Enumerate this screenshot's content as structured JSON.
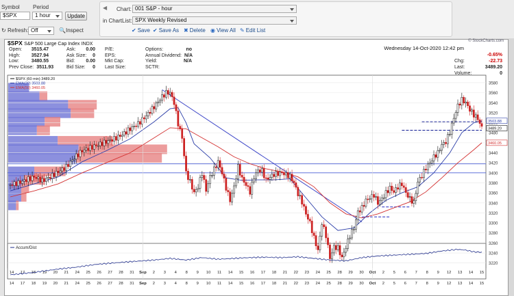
{
  "toolbar": {
    "symbol_label": "Symbol",
    "symbol_value": "$SPX",
    "period_label": "Period",
    "period_value": "1 hour",
    "update_label": "Update",
    "refresh_label": "Refresh:",
    "refresh_value": "Off",
    "inspect_label": "Inspect",
    "chart_label": "Chart:",
    "chart_value": "001 S&P - hour",
    "chartlist_label": "in ChartList:",
    "chartlist_value": "SPX Weekly Revised",
    "actions": [
      "Save",
      "Save As",
      "Delete",
      "View All",
      "Edit List"
    ]
  },
  "header": {
    "symbol": "$SPX",
    "name": "S&P 500 Large Cap Index",
    "exchange": "INDX",
    "brand": "© StockCharts.com",
    "date": "Wednesday  14-Oct-2020  12:42 pm",
    "quotes": {
      "col1": [
        [
          "Open:",
          "3515.47"
        ],
        [
          "High:",
          "3527.94"
        ],
        [
          "Low:",
          "3480.55"
        ],
        [
          "Prev Close:",
          "3511.93"
        ]
      ],
      "col2": [
        [
          "Ask:",
          "0.00"
        ],
        [
          "Ask Size:",
          "0"
        ],
        [
          "Bid:",
          "0.00"
        ],
        [
          "Bid Size:",
          "0"
        ]
      ],
      "col3": [
        [
          "P/E:",
          ""
        ],
        [
          "EPS:",
          ""
        ],
        [
          "Mkt Cap:",
          ""
        ],
        [
          "Last Size:",
          ""
        ]
      ],
      "col4": [
        [
          "Options:",
          "no"
        ],
        [
          "Annual Dividend:",
          "N/A"
        ],
        [
          "Yield:",
          "N/A"
        ],
        [
          "SCTR:",
          ""
        ]
      ],
      "right": [
        [
          "",
          "-0.65%"
        ],
        [
          "Chg:",
          "-22.73"
        ],
        [
          "Last:",
          "3489.20"
        ],
        [
          "Volume:",
          "0"
        ]
      ]
    }
  },
  "chart_data": {
    "type": "candlestick",
    "interval": "60 min",
    "legend": [
      "$SPX (60 min) 3489.20",
      "EMA(20) 3503.88",
      "EMA(50) 3460.05"
    ],
    "price_labels": [
      "3489.20",
      "3503.88",
      "3460.05"
    ],
    "y_ticks": [
      3220,
      3240,
      3260,
      3280,
      3300,
      3320,
      3340,
      3360,
      3380,
      3400,
      3420,
      3440,
      3460,
      3480,
      3500,
      3520,
      3540,
      3560,
      3580
    ],
    "ylim": [
      3210,
      3595
    ],
    "x_labels": [
      "14",
      "17",
      "18",
      "19",
      "20",
      "21",
      "24",
      "25",
      "26",
      "27",
      "28",
      "31",
      "Sep",
      "2",
      "3",
      "4",
      "8",
      "9",
      "10",
      "11",
      "14",
      "15",
      "16",
      "17",
      "18",
      "21",
      "22",
      "23",
      "24",
      "25",
      "28",
      "29",
      "30",
      "Oct",
      "2",
      "5",
      "6",
      "7",
      "8",
      "9",
      "12",
      "13",
      "14",
      "15"
    ],
    "bold_labels": [
      "Sep",
      "Oct"
    ],
    "close_points": [
      [
        0,
        3376
      ],
      [
        2,
        3380
      ],
      [
        4,
        3386
      ],
      [
        6,
        3392
      ],
      [
        8,
        3384
      ],
      [
        10,
        3392
      ],
      [
        12,
        3402
      ],
      [
        14,
        3412
      ],
      [
        16,
        3430
      ],
      [
        18,
        3444
      ],
      [
        20,
        3450
      ],
      [
        22,
        3456
      ],
      [
        24,
        3462
      ],
      [
        26,
        3468
      ],
      [
        28,
        3476
      ],
      [
        30,
        3488
      ],
      [
        32,
        3498
      ],
      [
        34,
        3514
      ],
      [
        36,
        3532
      ],
      [
        38,
        3552
      ],
      [
        39,
        3560
      ],
      [
        40,
        3560
      ],
      [
        41,
        3540
      ],
      [
        42,
        3498
      ],
      [
        43,
        3470
      ],
      [
        44,
        3400
      ],
      [
        45,
        3382
      ],
      [
        46,
        3360
      ],
      [
        47,
        3372
      ],
      [
        48,
        3400
      ],
      [
        49,
        3365
      ],
      [
        50,
        3392
      ],
      [
        52,
        3422
      ],
      [
        53,
        3400
      ],
      [
        54,
        3370
      ],
      [
        55,
        3345
      ],
      [
        56,
        3372
      ],
      [
        57,
        3412
      ],
      [
        58,
        3388
      ],
      [
        59,
        3376
      ],
      [
        60,
        3362
      ],
      [
        61,
        3392
      ],
      [
        62,
        3405
      ],
      [
        63,
        3404
      ],
      [
        64,
        3386
      ],
      [
        66,
        3397
      ],
      [
        68,
        3400
      ],
      [
        70,
        3393
      ],
      [
        71,
        3380
      ],
      [
        72,
        3358
      ],
      [
        73,
        3342
      ],
      [
        74,
        3318
      ],
      [
        75,
        3300
      ],
      [
        76,
        3270
      ],
      [
        77,
        3245
      ],
      [
        78,
        3300
      ],
      [
        79,
        3275
      ],
      [
        80,
        3230
      ],
      [
        81,
        3252
      ],
      [
        82,
        3250
      ],
      [
        83,
        3230
      ],
      [
        84,
        3252
      ],
      [
        85,
        3275
      ],
      [
        86,
        3290
      ],
      [
        87,
        3322
      ],
      [
        88,
        3330
      ],
      [
        89,
        3345
      ],
      [
        90,
        3350
      ],
      [
        91,
        3356
      ],
      [
        92,
        3340
      ],
      [
        93,
        3348
      ],
      [
        94,
        3360
      ],
      [
        95,
        3370
      ],
      [
        96,
        3362
      ],
      [
        97,
        3372
      ],
      [
        98,
        3378
      ],
      [
        99,
        3360
      ],
      [
        100,
        3348
      ],
      [
        101,
        3340
      ],
      [
        102,
        3382
      ],
      [
        103,
        3395
      ],
      [
        104,
        3410
      ],
      [
        105,
        3420
      ],
      [
        106,
        3432
      ],
      [
        107,
        3440
      ],
      [
        108,
        3456
      ],
      [
        109,
        3462
      ],
      [
        110,
        3482
      ],
      [
        111,
        3510
      ],
      [
        112,
        3534
      ],
      [
        113,
        3546
      ],
      [
        114,
        3540
      ],
      [
        115,
        3526
      ],
      [
        116,
        3516
      ],
      [
        117,
        3508
      ],
      [
        118,
        3490
      ]
    ],
    "ema20": [
      [
        0,
        3364
      ],
      [
        6,
        3378
      ],
      [
        12,
        3392
      ],
      [
        18,
        3422
      ],
      [
        24,
        3444
      ],
      [
        30,
        3468
      ],
      [
        36,
        3502
      ],
      [
        40,
        3528
      ],
      [
        42,
        3530
      ],
      [
        44,
        3500
      ],
      [
        46,
        3458
      ],
      [
        50,
        3430
      ],
      [
        54,
        3390
      ],
      [
        58,
        3385
      ],
      [
        62,
        3386
      ],
      [
        66,
        3386
      ],
      [
        70,
        3388
      ],
      [
        74,
        3350
      ],
      [
        78,
        3312
      ],
      [
        82,
        3285
      ],
      [
        86,
        3290
      ],
      [
        90,
        3320
      ],
      [
        94,
        3345
      ],
      [
        98,
        3360
      ],
      [
        102,
        3372
      ],
      [
        106,
        3400
      ],
      [
        110,
        3440
      ],
      [
        113,
        3480
      ],
      [
        116,
        3500
      ],
      [
        118,
        3504
      ]
    ],
    "ema50": [
      [
        0,
        3352
      ],
      [
        6,
        3364
      ],
      [
        12,
        3378
      ],
      [
        18,
        3400
      ],
      [
        24,
        3420
      ],
      [
        30,
        3440
      ],
      [
        36,
        3470
      ],
      [
        40,
        3490
      ],
      [
        44,
        3488
      ],
      [
        48,
        3470
      ],
      [
        52,
        3452
      ],
      [
        56,
        3432
      ],
      [
        60,
        3418
      ],
      [
        64,
        3408
      ],
      [
        68,
        3402
      ],
      [
        72,
        3392
      ],
      [
        76,
        3372
      ],
      [
        80,
        3340
      ],
      [
        84,
        3318
      ],
      [
        88,
        3310
      ],
      [
        92,
        3318
      ],
      [
        96,
        3330
      ],
      [
        100,
        3342
      ],
      [
        104,
        3362
      ],
      [
        108,
        3390
      ],
      [
        112,
        3420
      ],
      [
        116,
        3446
      ],
      [
        118,
        3460
      ]
    ],
    "volume_profile": [
      {
        "price": 3570,
        "blue": 16,
        "red": 0
      },
      {
        "price": 3553,
        "blue": 24,
        "red": 6
      },
      {
        "price": 3536,
        "blue": 46,
        "red": 22
      },
      {
        "price": 3519,
        "blue": 48,
        "red": 18
      },
      {
        "price": 3502,
        "blue": 28,
        "red": 12
      },
      {
        "price": 3485,
        "blue": 22,
        "red": 10
      },
      {
        "price": 3464,
        "blue": 38,
        "red": 42
      },
      {
        "price": 3447,
        "blue": 54,
        "red": 68
      },
      {
        "price": 3430,
        "blue": 52,
        "red": 66
      },
      {
        "price": 3403,
        "blue": 20,
        "red": 24
      },
      {
        "price": 3386,
        "blue": 12,
        "red": 16
      },
      {
        "price": 3369,
        "blue": 10,
        "red": 6
      },
      {
        "price": 3352,
        "blue": 10,
        "red": 4
      },
      {
        "price": 3335,
        "blue": 6,
        "red": 2
      }
    ],
    "trendline": [
      [
        38,
        3566
      ],
      [
        88,
        3302
      ]
    ],
    "horizontal_lines": [
      3400,
      3418
    ],
    "accum_dist": {
      "label": "Accum/Dist",
      "points": [
        [
          0,
          20
        ],
        [
          6,
          26
        ],
        [
          12,
          34
        ],
        [
          16,
          38
        ],
        [
          22,
          46
        ],
        [
          30,
          52
        ],
        [
          36,
          56
        ],
        [
          40,
          60
        ],
        [
          44,
          56
        ],
        [
          48,
          62
        ],
        [
          52,
          58
        ],
        [
          56,
          60
        ],
        [
          60,
          62
        ],
        [
          64,
          63
        ],
        [
          68,
          62
        ],
        [
          72,
          64
        ],
        [
          76,
          60
        ],
        [
          80,
          56
        ],
        [
          84,
          54
        ],
        [
          88,
          62
        ],
        [
          92,
          66
        ],
        [
          96,
          68
        ],
        [
          100,
          70
        ],
        [
          104,
          72
        ],
        [
          108,
          78
        ],
        [
          112,
          82
        ],
        [
          114,
          80
        ],
        [
          116,
          76
        ],
        [
          118,
          75
        ]
      ]
    }
  }
}
